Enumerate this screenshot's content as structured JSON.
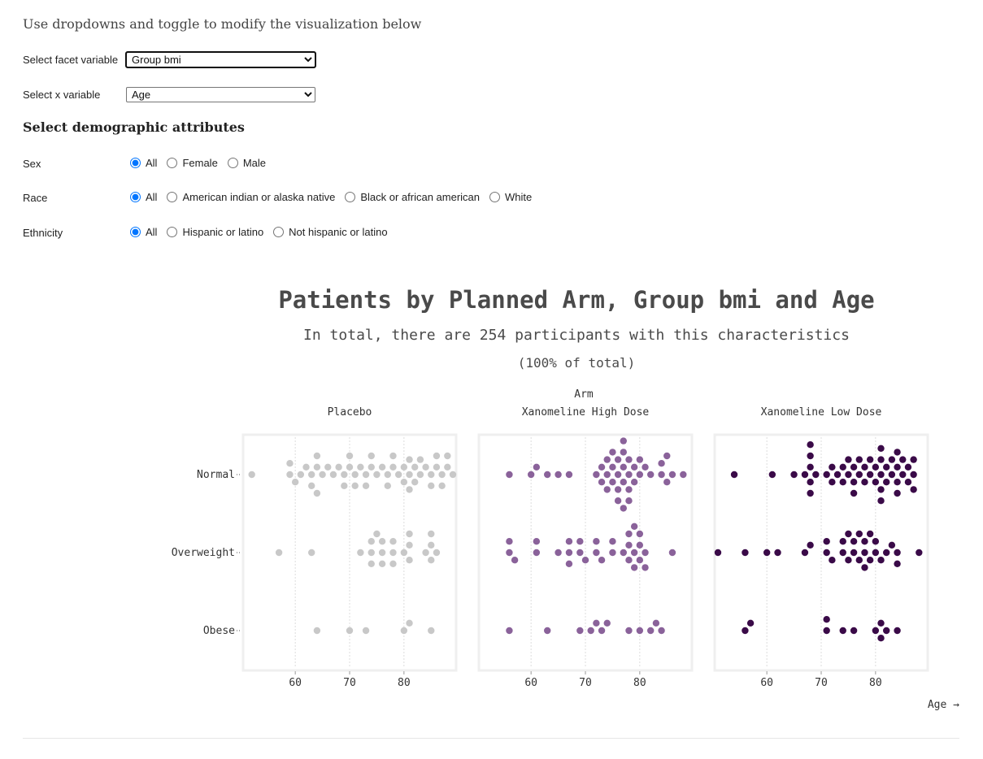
{
  "intro_text": "Use dropdowns and toggle to modify the visualization below",
  "controls": {
    "facet": {
      "label": "Select facet variable",
      "selected": "Group bmi"
    },
    "xvar": {
      "label": "Select x variable",
      "selected": "Age"
    }
  },
  "demographics": {
    "title": "Select demographic attributes",
    "sex": {
      "label": "Sex",
      "options": [
        "All",
        "Female",
        "Male"
      ],
      "selected": "All"
    },
    "race": {
      "label": "Race",
      "options": [
        "All",
        "American indian or alaska native",
        "Black or african american",
        "White"
      ],
      "selected": "All"
    },
    "ethnicity": {
      "label": "Ethnicity",
      "options": [
        "All",
        "Hispanic or latino",
        "Not hispanic or latino"
      ],
      "selected": "All"
    }
  },
  "chart_data": {
    "type": "scatter",
    "title": "Patients by Planned Arm, Group bmi and Age",
    "subtitle": "In total, there are 254 participants with this characteristics",
    "subtitle2": "(100% of total)",
    "facet_label": "Arm",
    "xlabel": "Age →",
    "xlim": [
      51,
      89
    ],
    "xticks": [
      60,
      70,
      80
    ],
    "rows": [
      "Normal",
      "Overweight",
      "Obese"
    ],
    "grid": true,
    "colors": {
      "Placebo": "#c8c8c8",
      "Xanomeline High Dose": "#8a629a",
      "Xanomeline Low Dose": "#3a0a48"
    },
    "facets": [
      {
        "name": "Placebo",
        "groups": {
          "Normal": [
            52,
            59,
            59,
            60,
            61,
            62,
            63,
            63,
            64,
            64,
            64,
            65,
            66,
            67,
            68,
            69,
            69,
            70,
            70,
            71,
            71,
            72,
            73,
            73,
            74,
            74,
            75,
            76,
            77,
            77,
            78,
            78,
            79,
            80,
            80,
            81,
            81,
            81,
            82,
            82,
            83,
            83,
            84,
            85,
            85,
            86,
            86,
            87,
            87,
            88,
            88,
            89
          ],
          "Overweight": [
            57,
            63,
            72,
            74,
            74,
            74,
            75,
            76,
            76,
            76,
            78,
            78,
            78,
            80,
            81,
            81,
            81,
            84,
            85,
            85,
            85,
            86
          ],
          "Obese": [
            64,
            70,
            73,
            80,
            81,
            85
          ]
        }
      },
      {
        "name": "Xanomeline High Dose",
        "groups": {
          "Normal": [
            56,
            60,
            61,
            63,
            65,
            67,
            72,
            73,
            73,
            74,
            74,
            74,
            75,
            75,
            75,
            76,
            76,
            76,
            76,
            77,
            77,
            77,
            77,
            77,
            78,
            78,
            78,
            78,
            79,
            79,
            80,
            80,
            81,
            82,
            84,
            84,
            85,
            85,
            86,
            88
          ],
          "Overweight": [
            56,
            56,
            57,
            61,
            61,
            65,
            67,
            67,
            67,
            69,
            69,
            70,
            72,
            72,
            73,
            75,
            75,
            77,
            78,
            78,
            78,
            79,
            79,
            79,
            80,
            80,
            80,
            81,
            81,
            86
          ],
          "Obese": [
            56,
            63,
            69,
            71,
            72,
            73,
            74,
            78,
            80,
            82,
            83,
            84
          ]
        }
      },
      {
        "name": "Xanomeline Low Dose",
        "groups": {
          "Normal": [
            54,
            61,
            65,
            67,
            68,
            68,
            68,
            68,
            68,
            69,
            71,
            72,
            72,
            73,
            74,
            74,
            75,
            75,
            76,
            76,
            76,
            77,
            77,
            78,
            78,
            79,
            79,
            80,
            80,
            81,
            81,
            81,
            81,
            81,
            82,
            82,
            83,
            83,
            84,
            84,
            84,
            84,
            85,
            85,
            86,
            86,
            87,
            87,
            87
          ],
          "Overweight": [
            51,
            56,
            60,
            62,
            67,
            68,
            71,
            71,
            72,
            74,
            74,
            75,
            75,
            76,
            76,
            77,
            77,
            78,
            78,
            78,
            79,
            79,
            80,
            80,
            81,
            82,
            83,
            84,
            84,
            88
          ],
          "Obese": [
            56,
            57,
            71,
            71,
            74,
            76,
            80,
            81,
            81,
            82,
            84
          ]
        }
      }
    ]
  }
}
